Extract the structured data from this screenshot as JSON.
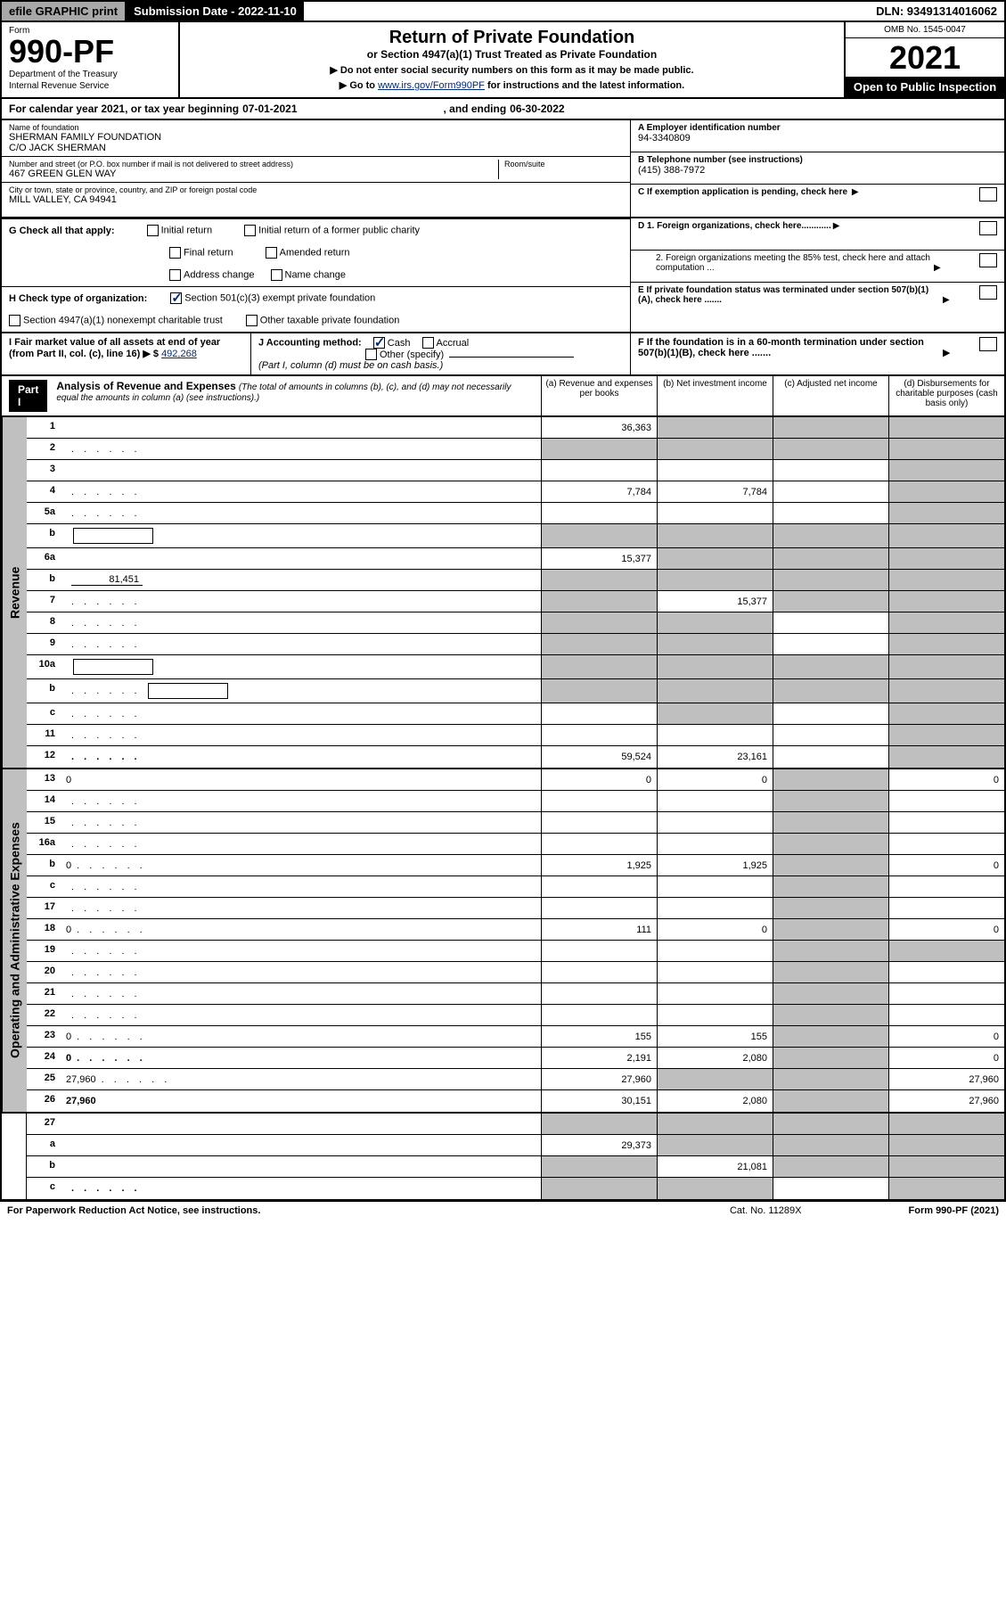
{
  "topbar": {
    "efile": "efile GRAPHIC print",
    "subdate_label": "Submission Date - 2022-11-10",
    "dln": "DLN: 93491314016062"
  },
  "header": {
    "form_label": "Form",
    "form_number": "990-PF",
    "dept1": "Department of the Treasury",
    "dept2": "Internal Revenue Service",
    "title": "Return of Private Foundation",
    "subtitle": "or Section 4947(a)(1) Trust Treated as Private Foundation",
    "instr1": "▶ Do not enter social security numbers on this form as it may be made public.",
    "instr2_pre": "▶ Go to ",
    "instr2_link": "www.irs.gov/Form990PF",
    "instr2_post": " for instructions and the latest information.",
    "omb": "OMB No. 1545-0047",
    "year": "2021",
    "open": "Open to Public Inspection"
  },
  "calendar": {
    "text1": "For calendar year 2021, or tax year beginning ",
    "begin": "07-01-2021",
    "text2": ", and ending ",
    "end": "06-30-2022"
  },
  "id": {
    "name_label": "Name of foundation",
    "name1": "SHERMAN FAMILY FOUNDATION",
    "name2": "C/O JACK SHERMAN",
    "addr_label": "Number and street (or P.O. box number if mail is not delivered to street address)",
    "addr": "467 GREEN GLEN WAY",
    "room_label": "Room/suite",
    "city_label": "City or town, state or province, country, and ZIP or foreign postal code",
    "city": "MILL VALLEY, CA  94941",
    "ein_label": "A Employer identification number",
    "ein": "94-3340809",
    "phone_label": "B Telephone number (see instructions)",
    "phone": "(415) 388-7972",
    "c_label": "C If exemption application is pending, check here",
    "d1": "D 1. Foreign organizations, check here............",
    "d2": "2. Foreign organizations meeting the 85% test, check here and attach computation ...",
    "e": "E  If private foundation status was terminated under section 507(b)(1)(A), check here .......",
    "f": "F  If the foundation is in a 60-month termination under section 507(b)(1)(B), check here .......",
    "g_label": "G Check all that apply:",
    "g_opts": [
      "Initial return",
      "Final return",
      "Address change",
      "Initial return of a former public charity",
      "Amended return",
      "Name change"
    ],
    "h_label": "H Check type of organization:",
    "h1": "Section 501(c)(3) exempt private foundation",
    "h2": "Section 4947(a)(1) nonexempt charitable trust",
    "h3": "Other taxable private foundation",
    "i_label": "I Fair market value of all assets at end of year (from Part II, col. (c), line 16) ▶ $",
    "i_val": "492,268",
    "j_label": "J Accounting method:",
    "j_cash": "Cash",
    "j_accrual": "Accrual",
    "j_other": "Other (specify)",
    "j_note": "(Part I, column (d) must be on cash basis.)"
  },
  "part1": {
    "badge": "Part I",
    "title": "Analysis of Revenue and Expenses",
    "note": "(The total of amounts in columns (b), (c), and (d) may not necessarily equal the amounts in column (a) (see instructions).)",
    "col_a": "(a) Revenue and expenses per books",
    "col_b": "(b) Net investment income",
    "col_c": "(c) Adjusted net income",
    "col_d": "(d) Disbursements for charitable purposes (cash basis only)"
  },
  "side": {
    "revenue": "Revenue",
    "expenses": "Operating and Administrative Expenses"
  },
  "rows": [
    {
      "n": "1",
      "d": "",
      "a": "36,363",
      "b": "",
      "c": "",
      "grey_b": true,
      "grey_c": true,
      "grey_d": true
    },
    {
      "n": "2",
      "d": "",
      "a": "",
      "b": "",
      "c": "",
      "grey_a": true,
      "grey_b": true,
      "grey_c": true,
      "grey_d": true,
      "dots": true
    },
    {
      "n": "3",
      "d": "",
      "a": "",
      "b": "",
      "c": "",
      "grey_d": true
    },
    {
      "n": "4",
      "d": "",
      "a": "7,784",
      "b": "7,784",
      "c": "",
      "grey_d": true,
      "dots": true
    },
    {
      "n": "5a",
      "d": "",
      "a": "",
      "b": "",
      "c": "",
      "grey_d": true,
      "dots": true
    },
    {
      "n": "b",
      "d": "",
      "a": "",
      "b": "",
      "c": "",
      "grey_a": true,
      "grey_b": true,
      "grey_c": true,
      "grey_d": true,
      "box": true
    },
    {
      "n": "6a",
      "d": "",
      "a": "15,377",
      "b": "",
      "c": "",
      "grey_b": true,
      "grey_c": true,
      "grey_d": true
    },
    {
      "n": "b",
      "d": "",
      "a": "",
      "b": "",
      "c": "",
      "grey_a": true,
      "grey_b": true,
      "grey_c": true,
      "grey_d": true,
      "blank": "81,451"
    },
    {
      "n": "7",
      "d": "",
      "a": "",
      "b": "15,377",
      "c": "",
      "grey_a": true,
      "grey_c": true,
      "grey_d": true,
      "dots": true
    },
    {
      "n": "8",
      "d": "",
      "a": "",
      "b": "",
      "c": "",
      "grey_a": true,
      "grey_b": true,
      "grey_d": true,
      "dots": true
    },
    {
      "n": "9",
      "d": "",
      "a": "",
      "b": "",
      "c": "",
      "grey_a": true,
      "grey_b": true,
      "grey_d": true,
      "dots": true
    },
    {
      "n": "10a",
      "d": "",
      "a": "",
      "b": "",
      "c": "",
      "grey_a": true,
      "grey_b": true,
      "grey_c": true,
      "grey_d": true,
      "box": true
    },
    {
      "n": "b",
      "d": "",
      "a": "",
      "b": "",
      "c": "",
      "grey_a": true,
      "grey_b": true,
      "grey_c": true,
      "grey_d": true,
      "box": true,
      "dots": true
    },
    {
      "n": "c",
      "d": "",
      "a": "",
      "b": "",
      "c": "",
      "grey_b": true,
      "grey_d": true,
      "dots": true
    },
    {
      "n": "11",
      "d": "",
      "a": "",
      "b": "",
      "c": "",
      "grey_d": true,
      "dots": true
    },
    {
      "n": "12",
      "d": "",
      "a": "59,524",
      "b": "23,161",
      "c": "",
      "grey_d": true,
      "bold": true,
      "dots": true
    }
  ],
  "rows2": [
    {
      "n": "13",
      "d": "0",
      "a": "0",
      "b": "0",
      "c": "",
      "grey_c": true
    },
    {
      "n": "14",
      "d": "",
      "a": "",
      "b": "",
      "c": "",
      "grey_c": true,
      "dots": true
    },
    {
      "n": "15",
      "d": "",
      "a": "",
      "b": "",
      "c": "",
      "grey_c": true,
      "dots": true
    },
    {
      "n": "16a",
      "d": "",
      "a": "",
      "b": "",
      "c": "",
      "grey_c": true,
      "dots": true
    },
    {
      "n": "b",
      "d": "0",
      "a": "1,925",
      "b": "1,925",
      "c": "",
      "grey_c": true,
      "dots": true
    },
    {
      "n": "c",
      "d": "",
      "a": "",
      "b": "",
      "c": "",
      "grey_c": true,
      "dots": true
    },
    {
      "n": "17",
      "d": "",
      "a": "",
      "b": "",
      "c": "",
      "grey_c": true,
      "dots": true
    },
    {
      "n": "18",
      "d": "0",
      "a": "111",
      "b": "0",
      "c": "",
      "grey_c": true,
      "dots": true
    },
    {
      "n": "19",
      "d": "",
      "a": "",
      "b": "",
      "c": "",
      "grey_c": true,
      "grey_d": true,
      "dots": true
    },
    {
      "n": "20",
      "d": "",
      "a": "",
      "b": "",
      "c": "",
      "grey_c": true,
      "dots": true
    },
    {
      "n": "21",
      "d": "",
      "a": "",
      "b": "",
      "c": "",
      "grey_c": true,
      "dots": true
    },
    {
      "n": "22",
      "d": "",
      "a": "",
      "b": "",
      "c": "",
      "grey_c": true,
      "dots": true
    },
    {
      "n": "23",
      "d": "0",
      "a": "155",
      "b": "155",
      "c": "",
      "grey_c": true,
      "dots": true
    },
    {
      "n": "24",
      "d": "0",
      "a": "2,191",
      "b": "2,080",
      "c": "",
      "grey_c": true,
      "bold": true,
      "dots": true
    },
    {
      "n": "25",
      "d": "27,960",
      "a": "27,960",
      "b": "",
      "c": "",
      "grey_b": true,
      "grey_c": true,
      "dots": true
    },
    {
      "n": "26",
      "d": "27,960",
      "a": "30,151",
      "b": "2,080",
      "c": "",
      "grey_c": true,
      "bold": true
    }
  ],
  "rows3": [
    {
      "n": "27",
      "d": "",
      "a": "",
      "b": "",
      "c": "",
      "grey_a": true,
      "grey_b": true,
      "grey_c": true,
      "grey_d": true
    },
    {
      "n": "a",
      "d": "",
      "a": "29,373",
      "b": "",
      "c": "",
      "grey_b": true,
      "grey_c": true,
      "grey_d": true,
      "bold": true
    },
    {
      "n": "b",
      "d": "",
      "a": "",
      "b": "21,081",
      "c": "",
      "grey_a": true,
      "grey_c": true,
      "grey_d": true,
      "bold": true
    },
    {
      "n": "c",
      "d": "",
      "a": "",
      "b": "",
      "c": "",
      "grey_a": true,
      "grey_b": true,
      "grey_d": true,
      "bold": true,
      "dots": true
    }
  ],
  "footer": {
    "left": "For Paperwork Reduction Act Notice, see instructions.",
    "mid": "Cat. No. 11289X",
    "right": "Form 990-PF (2021)"
  }
}
